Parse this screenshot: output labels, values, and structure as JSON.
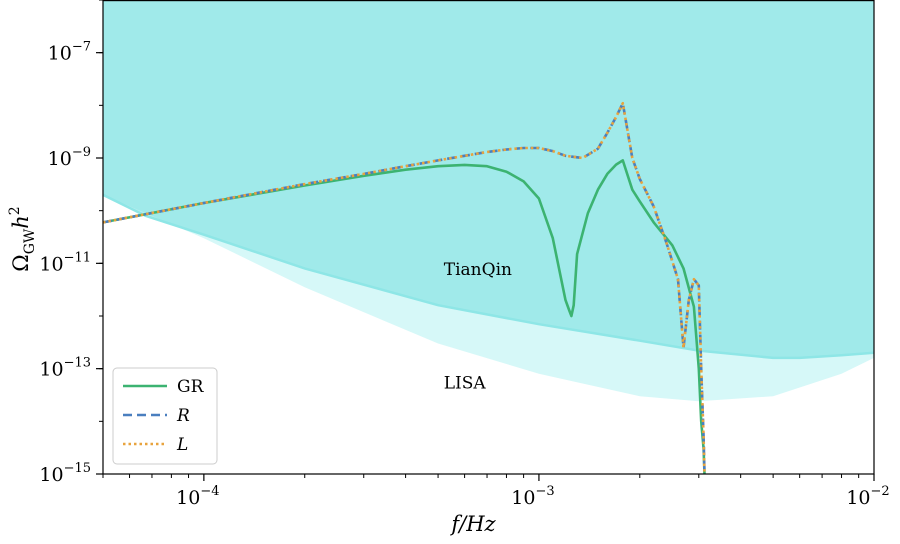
{
  "chart_data": {
    "type": "line",
    "title": "",
    "xlabel": "f/Hz",
    "ylabel": "Ω_GW h^2",
    "xscale": "log",
    "yscale": "log",
    "xlim": [
      5e-05,
      0.01
    ],
    "ylim": [
      1e-15,
      1e-06
    ],
    "grid": false,
    "legend_position": "lower-left",
    "x_ticks": [
      {
        "value": 0.0001,
        "base": "10",
        "exp": "−4"
      },
      {
        "value": 0.001,
        "base": "10",
        "exp": "−3"
      },
      {
        "value": 0.01,
        "base": "10",
        "exp": "−2"
      }
    ],
    "y_ticks": [
      {
        "value": 1e-15,
        "base": "10",
        "exp": "−15"
      },
      {
        "value": 1e-13,
        "base": "10",
        "exp": "−13"
      },
      {
        "value": 1e-11,
        "base": "10",
        "exp": "−11"
      },
      {
        "value": 1e-09,
        "base": "10",
        "exp": "−9"
      },
      {
        "value": 1e-07,
        "base": "10",
        "exp": "−7"
      }
    ],
    "regions": [
      {
        "name": "TianQin",
        "color": "#5fd9d9",
        "label_at": [
          0.00052,
          6e-12
        ],
        "x": [
          5e-05,
          6.7e-05,
          0.0001,
          0.0002,
          0.0005,
          0.001,
          0.002,
          0.003,
          0.005,
          0.006,
          0.008,
          0.01
        ],
        "y": [
          2e-10,
          8e-11,
          3.5e-11,
          8e-12,
          1.6e-12,
          7e-13,
          3.4e-13,
          2.2e-13,
          1.6e-13,
          1.6e-13,
          1.8e-13,
          2e-13
        ]
      },
      {
        "name": "LISA",
        "color": "#b5f2f2",
        "label_at": [
          0.00052,
          4.2e-14
        ],
        "x": [
          5e-05,
          6.7e-05,
          0.0001,
          0.0002,
          0.0005,
          0.001,
          0.002,
          0.003,
          0.005,
          0.008,
          0.01
        ],
        "y": [
          2e-10,
          9e-11,
          3e-11,
          3.5e-12,
          3e-13,
          8e-14,
          3e-14,
          2.4e-14,
          3e-14,
          8e-14,
          1.6e-13
        ]
      }
    ],
    "series": [
      {
        "name": "GR",
        "color": "#3cb371",
        "style": "solid",
        "x": [
          5e-05,
          0.0001,
          0.0002,
          0.0003,
          0.0004,
          0.0005,
          0.0006,
          0.0007,
          0.0008,
          0.0009,
          0.001,
          0.0011,
          0.0012,
          0.00123,
          0.00125,
          0.00127,
          0.0013,
          0.0014,
          0.0015,
          0.0016,
          0.0017,
          0.00178,
          0.0019,
          0.002,
          0.0022,
          0.0025,
          0.0027,
          0.0029,
          0.003,
          0.00305,
          0.0031,
          0.00312
        ],
        "y": [
          6e-11,
          1.4e-10,
          3e-10,
          4.6e-10,
          6e-10,
          7e-10,
          7.4e-10,
          7e-10,
          5.5e-10,
          3.6e-10,
          1.7e-10,
          3e-11,
          2e-12,
          1.3e-12,
          1e-12,
          1.6e-12,
          1.5e-11,
          9e-11,
          2.5e-10,
          5e-10,
          7.5e-10,
          9e-10,
          2.5e-10,
          1.5e-10,
          6e-11,
          2.2e-11,
          8e-12,
          1.5e-12,
          1e-13,
          1e-14,
          3e-15,
          1e-15
        ]
      },
      {
        "name": "R",
        "color": "#4a7fbf",
        "style": "dashed",
        "x": [
          5e-05,
          0.0001,
          0.0002,
          0.0003,
          0.0004,
          0.0005,
          0.0006,
          0.0007,
          0.0008,
          0.0009,
          0.001,
          0.0011,
          0.0012,
          0.00135,
          0.0015,
          0.0016,
          0.0017,
          0.00178,
          0.0019,
          0.002,
          0.0022,
          0.0024,
          0.0026,
          0.0027,
          0.0028,
          0.0029,
          0.003,
          0.00305,
          0.0031,
          0.00312
        ],
        "y": [
          6e-11,
          1.4e-10,
          3.2e-10,
          5e-10,
          7e-10,
          9e-10,
          1.1e-09,
          1.3e-09,
          1.45e-09,
          1.55e-09,
          1.55e-09,
          1.35e-09,
          1.1e-09,
          1e-09,
          1.5e-09,
          3e-09,
          6e-09,
          1.1e-08,
          1e-09,
          4e-10,
          1.2e-10,
          2.5e-11,
          5e-12,
          2.5e-13,
          2e-12,
          5e-12,
          3.8e-12,
          1e-13,
          5e-15,
          1e-15
        ]
      },
      {
        "name": "L",
        "color": "#e8a33d",
        "style": "dotted",
        "x": [
          5e-05,
          0.0001,
          0.0002,
          0.0003,
          0.0004,
          0.0005,
          0.0006,
          0.0007,
          0.0008,
          0.0009,
          0.001,
          0.0011,
          0.0012,
          0.00135,
          0.0015,
          0.0016,
          0.0017,
          0.00178,
          0.0019,
          0.002,
          0.0022,
          0.0024,
          0.0026,
          0.0027,
          0.0028,
          0.0029,
          0.003,
          0.00305,
          0.0031,
          0.00312
        ],
        "y": [
          6e-11,
          1.4e-10,
          3.2e-10,
          5e-10,
          7e-10,
          9e-10,
          1.1e-09,
          1.3e-09,
          1.45e-09,
          1.55e-09,
          1.55e-09,
          1.35e-09,
          1.1e-09,
          1e-09,
          1.5e-09,
          3e-09,
          6e-09,
          1.1e-08,
          1e-09,
          4e-10,
          1.2e-10,
          2.5e-11,
          5e-12,
          2.5e-13,
          2e-12,
          5e-12,
          3.8e-12,
          1e-13,
          5e-15,
          1e-15
        ]
      }
    ],
    "legend": [
      {
        "label": "GR",
        "italic": false
      },
      {
        "label": "R",
        "italic": true
      },
      {
        "label": "L",
        "italic": true
      }
    ]
  }
}
